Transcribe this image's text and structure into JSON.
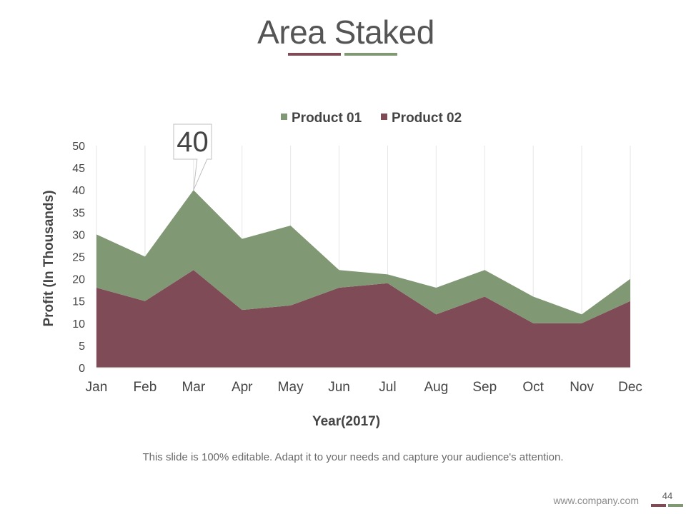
{
  "slide": {
    "title": "Area Staked",
    "caption": "This slide is 100% editable. Adapt it to your needs and capture your audience's attention.",
    "footer_url": "www.company.com",
    "page_number": "44",
    "accent_colors": [
      "#7F4B57",
      "#809873"
    ]
  },
  "chart_data": {
    "type": "area",
    "stacked": true,
    "title": "",
    "xlabel": "Year(2017)",
    "ylabel": "Profit (In Thousands)",
    "ylim": [
      0,
      50
    ],
    "yticks": [
      0,
      5,
      10,
      15,
      20,
      25,
      30,
      35,
      40,
      45,
      50
    ],
    "categories": [
      "Jan",
      "Feb",
      "Mar",
      "Apr",
      "May",
      "Jun",
      "Jul",
      "Aug",
      "Sep",
      "Oct",
      "Nov",
      "Dec"
    ],
    "series": [
      {
        "name": "Product 02",
        "color": "#7F4B57",
        "values": [
          18,
          15,
          22,
          13,
          14,
          18,
          19,
          12,
          16,
          10,
          10,
          15
        ]
      },
      {
        "name": "Product 01",
        "color": "#809873",
        "values": [
          12,
          10,
          18,
          16,
          18,
          4,
          2,
          6,
          6,
          6,
          2,
          5
        ]
      }
    ],
    "legend_order": [
      "Product 01",
      "Product 02"
    ],
    "legend_position": "top",
    "grid": "vertical",
    "callout": {
      "category": "Mar",
      "label": "40"
    }
  }
}
